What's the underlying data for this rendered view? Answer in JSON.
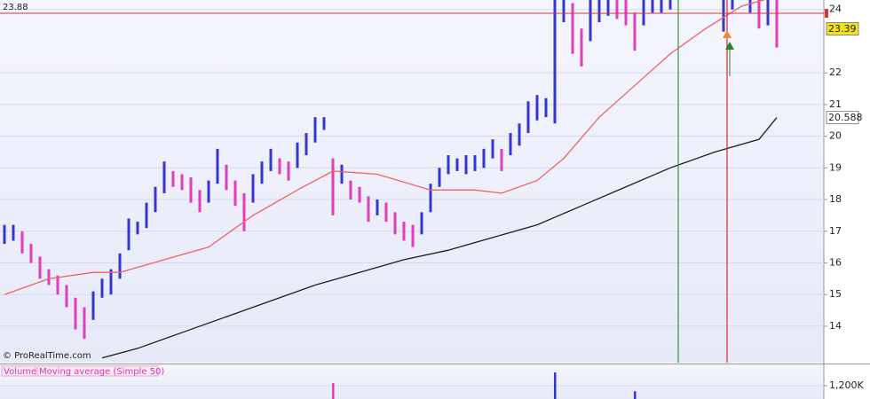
{
  "chart_data": [
    {
      "type": "hilo",
      "high": [
        17.2,
        17.2,
        17.0,
        16.6,
        16.2,
        15.8,
        15.6,
        15.3,
        14.9,
        14.6,
        15.1,
        15.5,
        15.8,
        16.3,
        17.4,
        17.3,
        17.9,
        18.4,
        19.2,
        18.9,
        18.8,
        18.7,
        18.3,
        18.6,
        19.6,
        19.1,
        18.6,
        18.2,
        18.8,
        19.2,
        19.6,
        19.3,
        19.2,
        19.8,
        20.1,
        20.6,
        20.6,
        19.3,
        19.1,
        18.6,
        18.4,
        18.1,
        18.0,
        17.9,
        17.6,
        17.3,
        17.2,
        17.6,
        18.5,
        19.0,
        19.4,
        19.3,
        19.4,
        19.4,
        19.6,
        19.9,
        19.6,
        20.1,
        20.4,
        21.1,
        21.3,
        21.2,
        24.5,
        24.5,
        24.2,
        23.4,
        24.4,
        24.5,
        24.4,
        24.3,
        24.4,
        23.9,
        24.5,
        24.5,
        24.5,
        24.5,
        null,
        null,
        null,
        null,
        null,
        24.4,
        24.5,
        null,
        24.5,
        24.5,
        24.5,
        24.5
      ],
      "low": [
        16.6,
        16.7,
        16.3,
        16.0,
        15.5,
        15.3,
        15.0,
        14.6,
        13.9,
        13.6,
        14.2,
        14.9,
        15.0,
        15.5,
        16.4,
        16.9,
        17.1,
        17.6,
        18.2,
        18.4,
        18.3,
        17.9,
        17.6,
        17.9,
        18.5,
        18.3,
        17.8,
        17.0,
        17.9,
        18.5,
        18.9,
        18.8,
        18.6,
        19.0,
        19.4,
        19.8,
        20.2,
        17.5,
        18.5,
        18.0,
        17.9,
        17.3,
        17.5,
        17.3,
        16.9,
        16.7,
        16.5,
        16.9,
        17.6,
        18.4,
        18.8,
        18.9,
        18.8,
        18.9,
        19.0,
        19.3,
        18.9,
        19.4,
        19.7,
        20.1,
        20.5,
        20.6,
        20.4,
        23.6,
        22.6,
        22.2,
        23.0,
        23.6,
        23.8,
        23.7,
        23.5,
        22.7,
        23.5,
        23.9,
        23.9,
        24.0,
        null,
        null,
        null,
        null,
        null,
        23.3,
        24.0,
        null,
        23.9,
        23.4,
        23.5,
        22.8
      ],
      "up_color": "#3535d0",
      "down_color": "#e33bbd",
      "ylim": [
        12.85,
        24.3
      ],
      "yticks": [
        14,
        15,
        16,
        17,
        18,
        19,
        20,
        21,
        22,
        24
      ],
      "moving_averages": [
        {
          "color": "#f06262",
          "x": [
            0,
            5,
            10,
            13,
            18,
            23,
            28,
            33,
            37,
            42,
            48,
            53,
            56,
            60,
            63,
            67,
            71,
            75,
            79,
            83,
            88
          ],
          "values": [
            15.0,
            15.5,
            15.7,
            15.7,
            16.1,
            16.5,
            17.5,
            18.3,
            18.9,
            18.8,
            18.3,
            18.3,
            18.2,
            18.6,
            19.3,
            20.6,
            21.6,
            22.6,
            23.4,
            24.1,
            24.5
          ]
        },
        {
          "color": "#1e1e1e",
          "x": [
            11,
            15,
            20,
            25,
            30,
            35,
            40,
            45,
            50,
            55,
            60,
            65,
            70,
            75,
            80,
            85,
            87
          ],
          "values": [
            13.0,
            13.3,
            13.8,
            14.3,
            14.8,
            15.3,
            15.7,
            16.1,
            16.4,
            16.8,
            17.2,
            17.8,
            18.4,
            19.0,
            19.5,
            19.9,
            20.588
          ]
        }
      ],
      "reference_line": {
        "value": 23.88,
        "color": "#e03030"
      },
      "price_tags": [
        {
          "value": 23.39,
          "color": "#f3e21a"
        },
        {
          "value": 20.588,
          "color": "#ffffff"
        }
      ],
      "copyright": "© ProRealTime.com"
    },
    {
      "type": "volume",
      "legend": [
        "Volume",
        "Moving average (Simple 50)"
      ],
      "x": [
        37,
        62,
        71
      ],
      "values": [
        1440000,
        2410000,
        700000
      ],
      "colors": [
        "#e33bbd",
        "#3535d0",
        "#3535d0"
      ],
      "ylim": [
        0,
        3050000
      ],
      "yticks": [
        {
          "value": 1200000,
          "label": "1,200K"
        }
      ]
    }
  ]
}
